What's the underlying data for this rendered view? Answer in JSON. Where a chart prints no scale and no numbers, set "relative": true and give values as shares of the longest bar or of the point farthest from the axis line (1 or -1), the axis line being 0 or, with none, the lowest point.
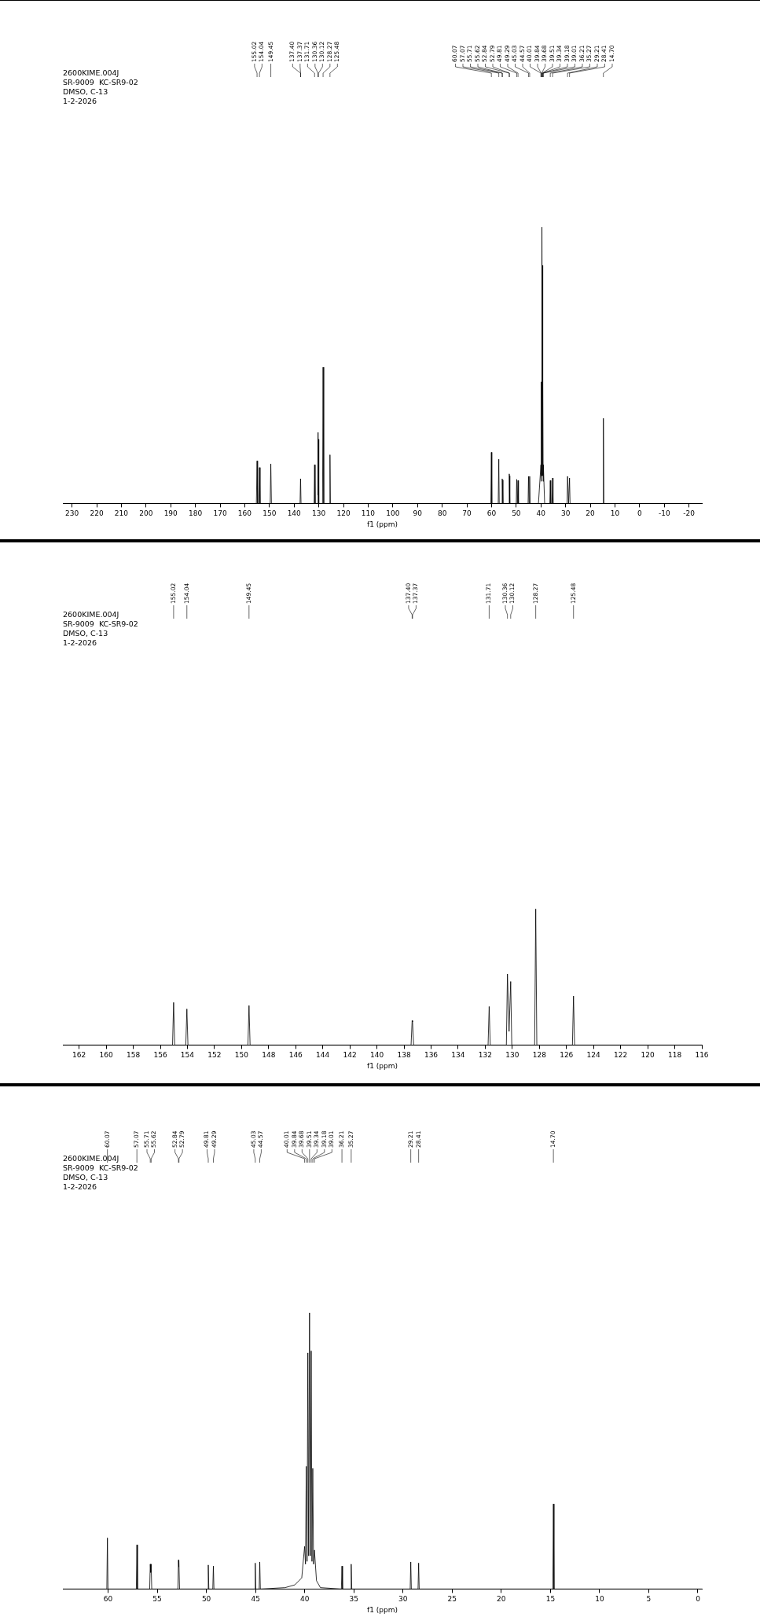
{
  "chart_data": [
    {
      "type": "line",
      "relative": true,
      "xlabel": "f1 (ppm)",
      "xlim": [
        233.7,
        -25.2
      ],
      "xticks": [
        230,
        220,
        210,
        200,
        190,
        180,
        170,
        160,
        150,
        140,
        130,
        120,
        110,
        100,
        90,
        80,
        70,
        60,
        50,
        40,
        30,
        20,
        10,
        0,
        -10,
        -20
      ],
      "annotations": [
        "2600KIME.004J",
        "SR-9009  KC-SR9-02",
        "DMSO, C-13",
        "1-2-2026",
        {
          "text": "155.02",
          "x": 155.02
        },
        {
          "text": "154.04",
          "x": 154.04
        },
        {
          "text": "149.45",
          "x": 149.45
        },
        {
          "text": "137.40",
          "x": 137.4
        },
        {
          "text": "137.37",
          "x": 137.37
        },
        {
          "text": "131.71",
          "x": 131.71
        },
        {
          "text": "130.36",
          "x": 130.36
        },
        {
          "text": "130.12",
          "x": 130.12
        },
        {
          "text": "128.27",
          "x": 128.27
        },
        {
          "text": "125.48",
          "x": 125.48
        },
        {
          "text": "60.07",
          "x": 60.07
        },
        {
          "text": "57.07",
          "x": 57.07
        },
        {
          "text": "55.71",
          "x": 55.71
        },
        {
          "text": "55.62",
          "x": 55.62
        },
        {
          "text": "52.84",
          "x": 52.84
        },
        {
          "text": "52.79",
          "x": 52.79
        },
        {
          "text": "49.81",
          "x": 49.81
        },
        {
          "text": "49.29",
          "x": 49.29
        },
        {
          "text": "45.03",
          "x": 45.03
        },
        {
          "text": "44.57",
          "x": 44.57
        },
        {
          "text": "40.01",
          "x": 40.01
        },
        {
          "text": "39.84",
          "x": 39.84
        },
        {
          "text": "39.68",
          "x": 39.68
        },
        {
          "text": "39.51",
          "x": 39.51
        },
        {
          "text": "39.34",
          "x": 39.34
        },
        {
          "text": "39.18",
          "x": 39.18
        },
        {
          "text": "39.01",
          "x": 39.01
        },
        {
          "text": "36.21",
          "x": 36.21
        },
        {
          "text": "35.27",
          "x": 35.27
        },
        {
          "text": "29.21",
          "x": 29.21
        },
        {
          "text": "28.41",
          "x": 28.41
        },
        {
          "text": "14.70",
          "x": 14.7
        }
      ],
      "series": [
        {
          "color": "#000000",
          "x": [
            233.7,
            155.3,
            155.02,
            154.8,
            154.3,
            154.04,
            153.8,
            149.7,
            149.45,
            149.2,
            137.6,
            137.4,
            137.37,
            137.2,
            131.9,
            131.71,
            131.5,
            130.5,
            130.36,
            130.24,
            130.12,
            130.0,
            128.5,
            128.27,
            128.0,
            125.7,
            125.48,
            125.3,
            60.3,
            60.07,
            59.9,
            57.3,
            57.07,
            56.9,
            55.9,
            55.71,
            55.62,
            55.4,
            53.0,
            52.84,
            52.79,
            52.6,
            50.0,
            49.81,
            49.55,
            49.29,
            49.1,
            45.2,
            45.03,
            44.8,
            44.57,
            44.4,
            41.0,
            40.01,
            39.92,
            39.84,
            39.76,
            39.68,
            39.6,
            39.51,
            39.42,
            39.34,
            39.26,
            39.18,
            39.1,
            39.01,
            38.5,
            36.4,
            36.21,
            36.0,
            35.5,
            35.27,
            35.1,
            29.4,
            29.21,
            28.8,
            28.41,
            28.2,
            14.9,
            14.7,
            14.5,
            -25.2
          ],
          "values": [
            0,
            0,
            0.154,
            0,
            0,
            0.13,
            0,
            0,
            0.143,
            0,
            0,
            0.089,
            0.085,
            0,
            0,
            0.14,
            0,
            0,
            0.257,
            0.03,
            0.232,
            0,
            0,
            0.493,
            0,
            0,
            0.176,
            0,
            0,
            0.185,
            0,
            0,
            0.16,
            0,
            0,
            0.089,
            0.085,
            0,
            0,
            0.107,
            0.1,
            0,
            0,
            0.087,
            0,
            0.083,
            0,
            0,
            0.098,
            0,
            0.098,
            0,
            0,
            0.14,
            0.08,
            0.44,
            0.1,
            0.862,
            0.12,
            1,
            0.12,
            0.862,
            0.1,
            0.44,
            0.08,
            0.14,
            0,
            0,
            0.083,
            0,
            0,
            0.092,
            0,
            0,
            0.098,
            0,
            0.092,
            0,
            0,
            0.308,
            0,
            0
          ]
        }
      ]
    },
    {
      "type": "line",
      "relative": true,
      "xlabel": "f1 (ppm)",
      "xlim": [
        163.2,
        116
      ],
      "xticks": [
        162,
        160,
        158,
        156,
        154,
        152,
        150,
        148,
        146,
        144,
        142,
        140,
        138,
        136,
        134,
        132,
        130,
        128,
        126,
        124,
        122,
        120,
        118,
        116
      ],
      "annotations": [
        "2600KIME.004J",
        "SR-9009  KC-SR9-02",
        "DMSO, C-13",
        "1-2-2026",
        {
          "text": "155.02",
          "x": 155.02
        },
        {
          "text": "154.04",
          "x": 154.04
        },
        {
          "text": "149.45",
          "x": 149.45
        },
        {
          "text": "137.40",
          "x": 137.4
        },
        {
          "text": "137.37",
          "x": 137.37
        },
        {
          "text": "131.71",
          "x": 131.71
        },
        {
          "text": "130.36",
          "x": 130.36
        },
        {
          "text": "130.12",
          "x": 130.12
        },
        {
          "text": "128.27",
          "x": 128.27
        },
        {
          "text": "125.48",
          "x": 125.48
        }
      ],
      "series": [
        {
          "color": "#000000",
          "x": [
            163.2,
            155.1,
            155.02,
            154.94,
            154.12,
            154.04,
            153.96,
            149.53,
            149.45,
            149.37,
            137.48,
            137.4,
            137.37,
            137.29,
            131.79,
            131.71,
            131.63,
            130.44,
            130.36,
            130.24,
            130.12,
            130.04,
            128.35,
            128.27,
            128.19,
            125.56,
            125.48,
            125.4,
            116
          ],
          "values": [
            0,
            0,
            0.313,
            0,
            0,
            0.265,
            0,
            0,
            0.29,
            0,
            0,
            0.18,
            0.17,
            0,
            0,
            0.283,
            0,
            0,
            0.522,
            0.1,
            0.467,
            0,
            0,
            1,
            0,
            0,
            0.36,
            0,
            0
          ]
        }
      ]
    },
    {
      "type": "line",
      "relative": true,
      "xlabel": "f1 (ppm)",
      "xlim": [
        64.6,
        -0.4
      ],
      "xticks": [
        60,
        55,
        50,
        45,
        40,
        35,
        30,
        25,
        20,
        15,
        10,
        5,
        0
      ],
      "annotations": [
        "2600KIME.004J",
        "SR-9009  KC-SR9-02",
        "DMSO, C-13",
        "1-2-2026",
        {
          "text": "60.07",
          "x": 60.07
        },
        {
          "text": "57.07",
          "x": 57.07
        },
        {
          "text": "55.71",
          "x": 55.71
        },
        {
          "text": "55.62",
          "x": 55.62
        },
        {
          "text": "52.84",
          "x": 52.84
        },
        {
          "text": "52.79",
          "x": 52.79
        },
        {
          "text": "49.81",
          "x": 49.81
        },
        {
          "text": "49.29",
          "x": 49.29
        },
        {
          "text": "45.03",
          "x": 45.03
        },
        {
          "text": "44.57",
          "x": 44.57
        },
        {
          "text": "40.01",
          "x": 40.01
        },
        {
          "text": "39.84",
          "x": 39.84
        },
        {
          "text": "39.68",
          "x": 39.68
        },
        {
          "text": "39.51",
          "x": 39.51
        },
        {
          "text": "39.34",
          "x": 39.34
        },
        {
          "text": "39.18",
          "x": 39.18
        },
        {
          "text": "39.01",
          "x": 39.01
        },
        {
          "text": "36.21",
          "x": 36.21
        },
        {
          "text": "35.27",
          "x": 35.27
        },
        {
          "text": "29.21",
          "x": 29.21
        },
        {
          "text": "28.41",
          "x": 28.41
        },
        {
          "text": "14.70",
          "x": 14.7
        }
      ],
      "series": [
        {
          "color": "#000000",
          "x": [
            64.6,
            60.13,
            60.07,
            60.01,
            57.13,
            57.07,
            57.01,
            55.77,
            55.71,
            55.665,
            55.62,
            55.56,
            52.9,
            52.84,
            52.815,
            52.79,
            52.73,
            49.87,
            49.81,
            49.75,
            49.35,
            49.29,
            49.23,
            45.09,
            45.03,
            44.97,
            44.63,
            44.57,
            44.51,
            42,
            41,
            40.3,
            40.01,
            39.92,
            39.84,
            39.76,
            39.68,
            39.6,
            39.51,
            39.42,
            39.34,
            39.26,
            39.18,
            39.1,
            39.01,
            38.8,
            38.4,
            36.27,
            36.21,
            36.15,
            35.33,
            35.27,
            35.21,
            29.27,
            29.21,
            29.15,
            28.47,
            28.41,
            28.35,
            14.76,
            14.7,
            14.64,
            -0.4
          ],
          "values": [
            0,
            0,
            0.185,
            0,
            0,
            0.16,
            0,
            0,
            0.09,
            0.06,
            0.09,
            0,
            0,
            0.105,
            0.08,
            0.105,
            0,
            0,
            0.087,
            0,
            0,
            0.083,
            0,
            0,
            0.094,
            0,
            0,
            0.098,
            0,
            0.005,
            0.015,
            0.04,
            0.154,
            0.09,
            0.444,
            0.1,
            0.855,
            0.12,
            1,
            0.12,
            0.862,
            0.1,
            0.437,
            0.09,
            0.141,
            0.03,
            0.005,
            0,
            0.083,
            0,
            0,
            0.09,
            0,
            0,
            0.098,
            0,
            0,
            0.094,
            0,
            0,
            0.308,
            0,
            0
          ]
        }
      ]
    }
  ]
}
